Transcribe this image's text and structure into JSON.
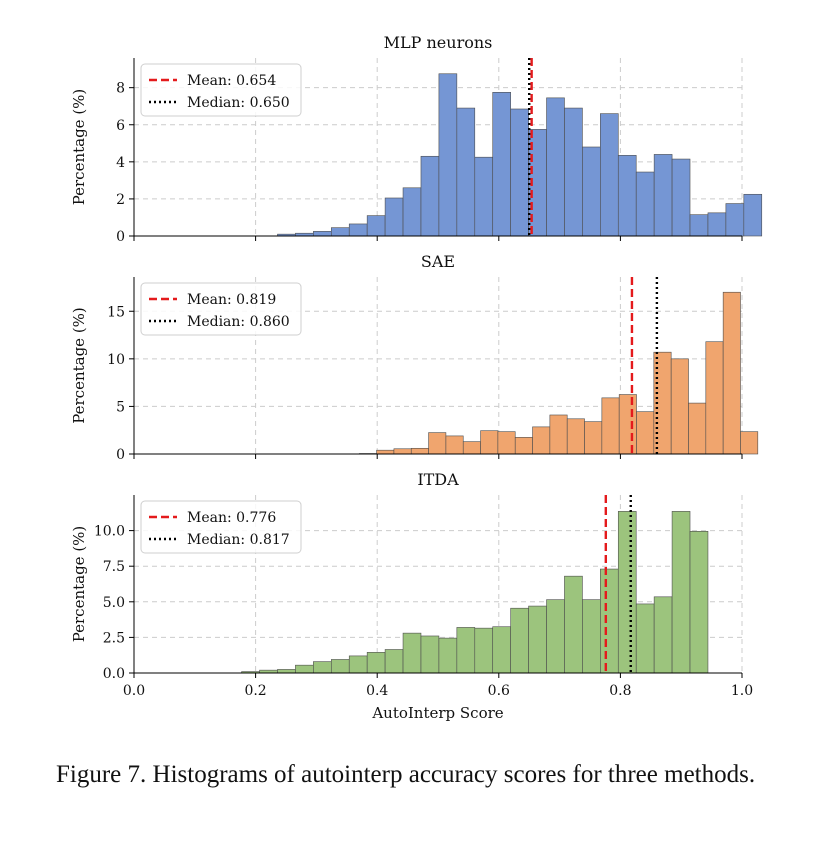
{
  "chart_data": [
    {
      "type": "bar",
      "title": "MLP neurons",
      "xlabel": "",
      "ylabel": "Percentage (%)",
      "xlim": [
        0.0,
        1.0
      ],
      "ylim": [
        0,
        9.6
      ],
      "yticks": [
        "0",
        "2",
        "4",
        "6",
        "8"
      ],
      "ytick_values": [
        0,
        2,
        4,
        6,
        8
      ],
      "xticks": [
        0.0,
        0.2,
        0.4,
        0.6,
        0.8,
        1.0
      ],
      "grid": true,
      "bin_width": 0.0295,
      "bin_start": 0.0,
      "color": "#7596d4",
      "values": [
        0,
        0,
        0,
        0,
        0,
        0,
        0,
        0,
        0.1,
        0.15,
        0.25,
        0.45,
        0.65,
        1.1,
        2.05,
        2.6,
        4.3,
        8.75,
        6.9,
        4.25,
        7.75,
        6.85,
        5.75,
        7.45,
        6.9,
        4.8,
        6.6,
        4.35,
        3.45,
        4.4,
        4.15,
        1.15,
        1.25,
        1.75,
        2.25
      ],
      "legend": {
        "position": "upper left",
        "entries": [
          {
            "label": "Mean: 0.654",
            "style": "dashed",
            "color": "#e41a1c"
          },
          {
            "label": "Median: 0.650",
            "style": "dotted",
            "color": "#000000"
          }
        ]
      },
      "mean": 0.654,
      "median": 0.65
    },
    {
      "type": "bar",
      "title": "SAE",
      "xlabel": "",
      "ylabel": "Percentage (%)",
      "xlim": [
        0.0,
        1.0
      ],
      "ylim": [
        0,
        18.6
      ],
      "yticks": [
        "0",
        "5",
        "10",
        "15"
      ],
      "ytick_values": [
        0,
        5,
        10,
        15
      ],
      "xticks": [
        0.0,
        0.2,
        0.4,
        0.6,
        0.8,
        1.0
      ],
      "grid": true,
      "bin_width": 0.0285,
      "bin_start": 0.0,
      "color": "#f0a56e",
      "values": [
        0,
        0,
        0,
        0,
        0,
        0,
        0,
        0,
        0,
        0,
        0,
        0,
        0,
        0.05,
        0.4,
        0.55,
        0.6,
        2.25,
        1.9,
        1.3,
        2.45,
        2.35,
        1.75,
        2.85,
        4.1,
        3.7,
        3.4,
        5.9,
        6.25,
        4.45,
        10.7,
        10.0,
        5.35,
        11.8,
        17.0,
        2.35
      ],
      "legend": {
        "position": "upper left",
        "entries": [
          {
            "label": "Mean: 0.819",
            "style": "dashed",
            "color": "#e41a1c"
          },
          {
            "label": "Median: 0.860",
            "style": "dotted",
            "color": "#000000"
          }
        ]
      },
      "mean": 0.819,
      "median": 0.86
    },
    {
      "type": "bar",
      "title": "ITDA",
      "xlabel": "AutoInterp Score",
      "ylabel": "Percentage (%)",
      "xlim": [
        0.0,
        1.0
      ],
      "ylim": [
        0,
        12.5
      ],
      "yticks": [
        "0.0",
        "2.5",
        "5.0",
        "7.5",
        "10.0"
      ],
      "ytick_values": [
        0,
        2.5,
        5,
        7.5,
        10
      ],
      "xticks": [
        0.0,
        0.2,
        0.4,
        0.6,
        0.8,
        1.0
      ],
      "xticklabels": [
        "0.0",
        "0.2",
        "0.4",
        "0.6",
        "0.8",
        "1.0"
      ],
      "grid": true,
      "bin_width": 0.0295,
      "bin_start": 0.0,
      "color": "#9cc47d",
      "values": [
        0,
        0,
        0,
        0,
        0,
        0,
        0.1,
        0.2,
        0.25,
        0.55,
        0.8,
        0.95,
        1.2,
        1.45,
        1.65,
        2.8,
        2.6,
        2.45,
        3.2,
        3.15,
        3.25,
        4.55,
        4.7,
        5.15,
        6.8,
        5.15,
        7.3,
        11.35,
        4.85,
        5.35,
        11.35,
        9.95
      ],
      "legend": {
        "position": "upper left",
        "entries": [
          {
            "label": "Mean: 0.776",
            "style": "dashed",
            "color": "#e41a1c"
          },
          {
            "label": "Median: 0.817",
            "style": "dotted",
            "color": "#000000"
          }
        ]
      },
      "mean": 0.776,
      "median": 0.817
    }
  ],
  "caption": "Figure 7. Histograms of autointerp accuracy scores for three methods."
}
